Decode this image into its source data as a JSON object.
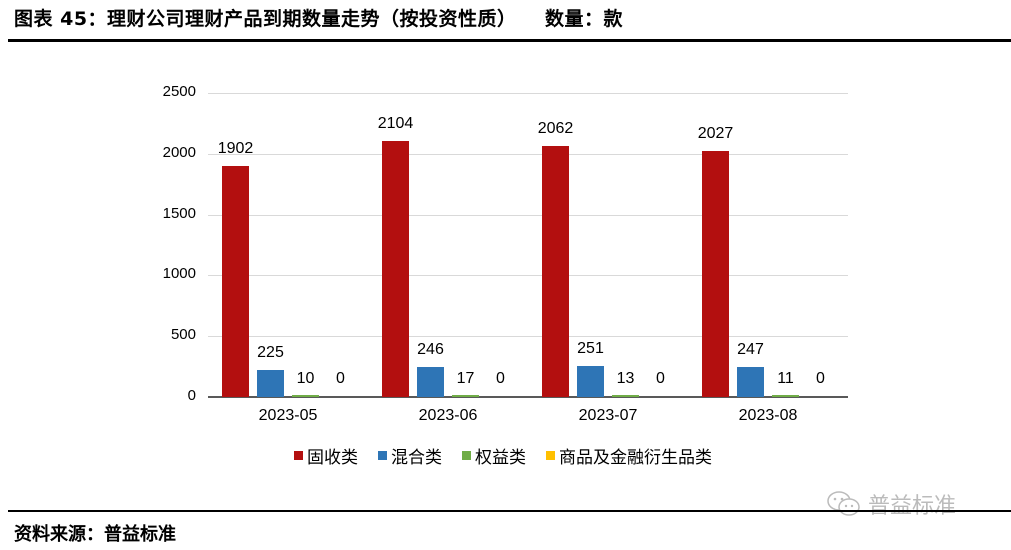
{
  "header": {
    "title": "图表 45：理财公司理财产品到期数量走势（按投资性质）    数量：款"
  },
  "footer": {
    "source": "资料来源：普益标准",
    "watermark": "普益标准",
    "watermark_icon": "wechat-icon"
  },
  "chart_data": {
    "type": "bar",
    "title": "理财公司理财产品到期数量走势（按投资性质）",
    "unit": "数量：款",
    "xlabel": "",
    "ylabel": "",
    "ylim": [
      0,
      2500
    ],
    "yticks": [
      "0",
      "500",
      "1000",
      "1500",
      "2000",
      "2500"
    ],
    "grid": true,
    "legend_position": "bottom",
    "categories": [
      "2023-05",
      "2023-06",
      "2023-07",
      "2023-08"
    ],
    "series": [
      {
        "name": "固收类",
        "color": "#B30F0F",
        "values": [
          1902,
          2104,
          2062,
          2027
        ]
      },
      {
        "name": "混合类",
        "color": "#2E75B6",
        "values": [
          225,
          246,
          251,
          247
        ]
      },
      {
        "name": "权益类",
        "color": "#70AD47",
        "values": [
          10,
          17,
          13,
          11
        ]
      },
      {
        "name": "商品及金融衍生品类",
        "color": "#FFC000",
        "values": [
          0,
          0,
          0,
          0
        ]
      }
    ]
  }
}
